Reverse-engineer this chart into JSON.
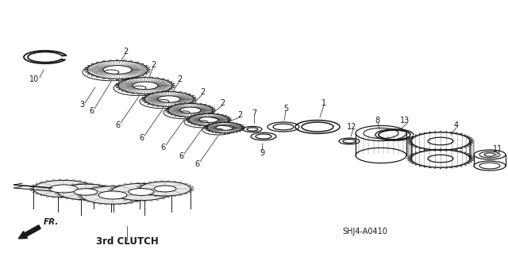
{
  "bg_color": "#ffffff",
  "label_3rd_clutch": "3rd CLUTCH",
  "label_ref": "SHJ4-A0410",
  "label_fr": "FR.",
  "fig_width": 6.4,
  "fig_height": 3.19,
  "dpi": 100,
  "base_color": "#1a1a1a",
  "skew": 0.3
}
